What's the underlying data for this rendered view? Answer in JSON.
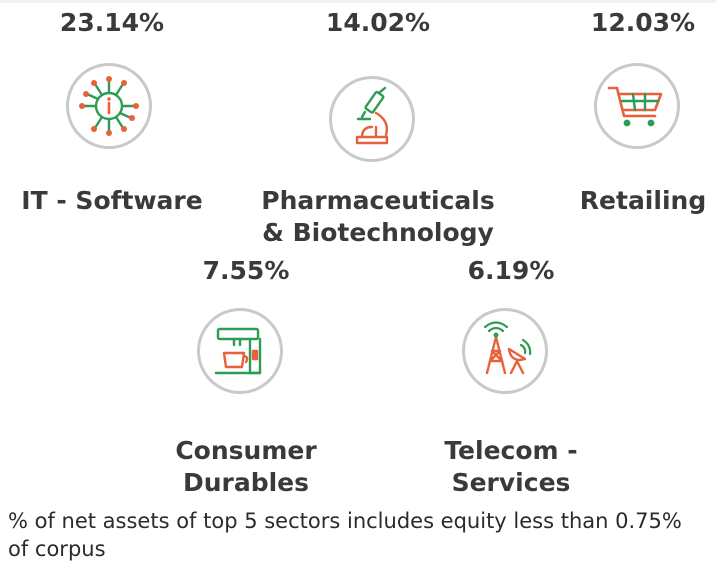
{
  "sectors": [
    {
      "name": "IT - Software",
      "percent": "23.14%",
      "icon": "circuit-chip-icon"
    },
    {
      "name": "Pharmaceuticals\n& Biotechnology",
      "percent": "14.02%",
      "icon": "microscope-icon"
    },
    {
      "name": "Retailing",
      "percent": "12.03%",
      "icon": "shopping-cart-icon"
    },
    {
      "name": "Consumer\nDurables",
      "percent": "7.55%",
      "icon": "coffee-machine-icon"
    },
    {
      "name": "Telecom -\nServices",
      "percent": "6.19%",
      "icon": "telecom-tower-icon"
    }
  ],
  "footnote": "% of net assets of top 5 sectors includes equity less than 0.75% of corpus",
  "colors": {
    "green": "#2e9b55",
    "orange": "#e8613a",
    "ring": "#c9c9c9",
    "text": "#3a3a3a"
  }
}
